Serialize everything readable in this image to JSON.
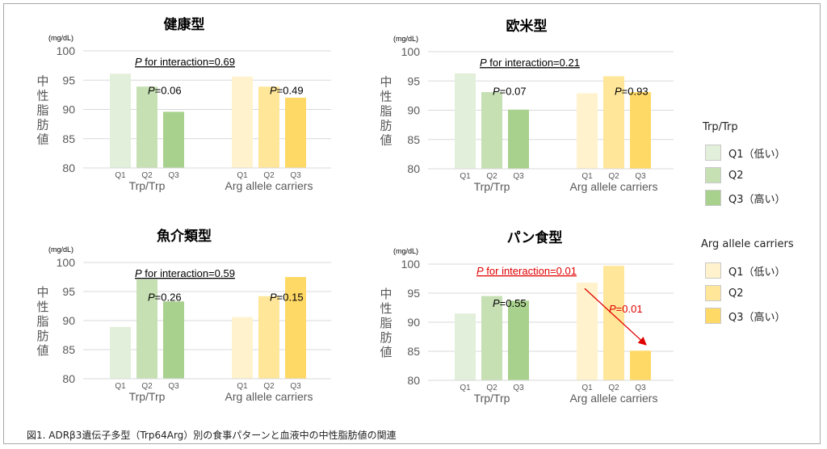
{
  "figure": {
    "caption": "図1. ADRβ3遺伝子多型（Trp64Arg）別の食事パターンと血液中の中性脂肪値の関連"
  },
  "colors": {
    "trp": [
      "#e2efda",
      "#c6e0b4",
      "#a9d18e"
    ],
    "arg": [
      "#fff2cc",
      "#ffe699",
      "#ffd966"
    ],
    "axis_text": "#595959",
    "text": "#000000",
    "highlight": "#e00000",
    "grid": "#d9d9d9"
  },
  "legend": {
    "groups": [
      {
        "title": "Trp/Trp",
        "items": [
          "Q1（低い）",
          "Q2",
          "Q3（高い）"
        ],
        "colors": [
          "#e2efda",
          "#c6e0b4",
          "#a9d18e"
        ]
      },
      {
        "title": "Arg allele carriers",
        "items": [
          "Q1（低い）",
          "Q2",
          "Q3（高い）"
        ],
        "colors": [
          "#fff2cc",
          "#ffe699",
          "#ffd966"
        ]
      }
    ]
  },
  "chart_data": [
    {
      "type": "bar",
      "title": "健康型",
      "unit": "(mg/dL)",
      "ylabel": "中性脂肪値",
      "ylim": [
        80,
        100
      ],
      "yticks": [
        80,
        85,
        90,
        95,
        100
      ],
      "grid": true,
      "interaction_label": "P for interaction=0.69",
      "groups": [
        {
          "name": "Trp/Trp",
          "categories": [
            "Q1",
            "Q2",
            "Q3"
          ],
          "values": [
            96.1,
            93.9,
            89.6
          ],
          "p_label": "P=0.06"
        },
        {
          "name": "Arg allele carriers",
          "categories": [
            "Q1",
            "Q2",
            "Q3"
          ],
          "values": [
            95.6,
            93.9,
            92.0
          ],
          "p_label": "P=0.49"
        }
      ],
      "highlight": false
    },
    {
      "type": "bar",
      "title": "欧米型",
      "unit": "(mg/dL)",
      "ylabel": "中性脂肪値",
      "ylim": [
        80,
        100
      ],
      "yticks": [
        80,
        85,
        90,
        95,
        100
      ],
      "grid": true,
      "interaction_label": "P for interaction=0.21",
      "groups": [
        {
          "name": "Trp/Trp",
          "categories": [
            "Q1",
            "Q2",
            "Q3"
          ],
          "values": [
            96.3,
            93.1,
            90.1
          ],
          "p_label": "P=0.07"
        },
        {
          "name": "Arg allele carriers",
          "categories": [
            "Q1",
            "Q2",
            "Q3"
          ],
          "values": [
            92.9,
            95.8,
            93.1
          ],
          "p_label": "P=0.93"
        }
      ],
      "highlight": false
    },
    {
      "type": "bar",
      "title": "魚介類型",
      "unit": "(mg/dL)",
      "ylabel": "中性脂肪値",
      "ylim": [
        80,
        100
      ],
      "yticks": [
        80,
        85,
        90,
        95,
        100
      ],
      "grid": true,
      "interaction_label": "P for interaction=0.59",
      "groups": [
        {
          "name": "Trp/Trp",
          "categories": [
            "Q1",
            "Q2",
            "Q3"
          ],
          "values": [
            88.9,
            97.1,
            93.3
          ],
          "p_label": "P=0.26"
        },
        {
          "name": "Arg allele carriers",
          "categories": [
            "Q1",
            "Q2",
            "Q3"
          ],
          "values": [
            90.6,
            94.2,
            97.5
          ],
          "p_label": "P=0.15"
        }
      ],
      "highlight": false
    },
    {
      "type": "bar",
      "title": "パン食型",
      "unit": "(mg/dL)",
      "ylabel": "中性脂肪値",
      "ylim": [
        80,
        100
      ],
      "yticks": [
        80,
        85,
        90,
        95,
        100
      ],
      "grid": true,
      "interaction_label": "P for interaction=0.01",
      "groups": [
        {
          "name": "Trp/Trp",
          "categories": [
            "Q1",
            "Q2",
            "Q3"
          ],
          "values": [
            91.5,
            94.5,
            93.7
          ],
          "p_label": "P=0.55"
        },
        {
          "name": "Arg allele carriers",
          "categories": [
            "Q1",
            "Q2",
            "Q3"
          ],
          "values": [
            96.8,
            99.7,
            85.1
          ],
          "p_label": "P=0.01"
        }
      ],
      "highlight": true
    }
  ]
}
